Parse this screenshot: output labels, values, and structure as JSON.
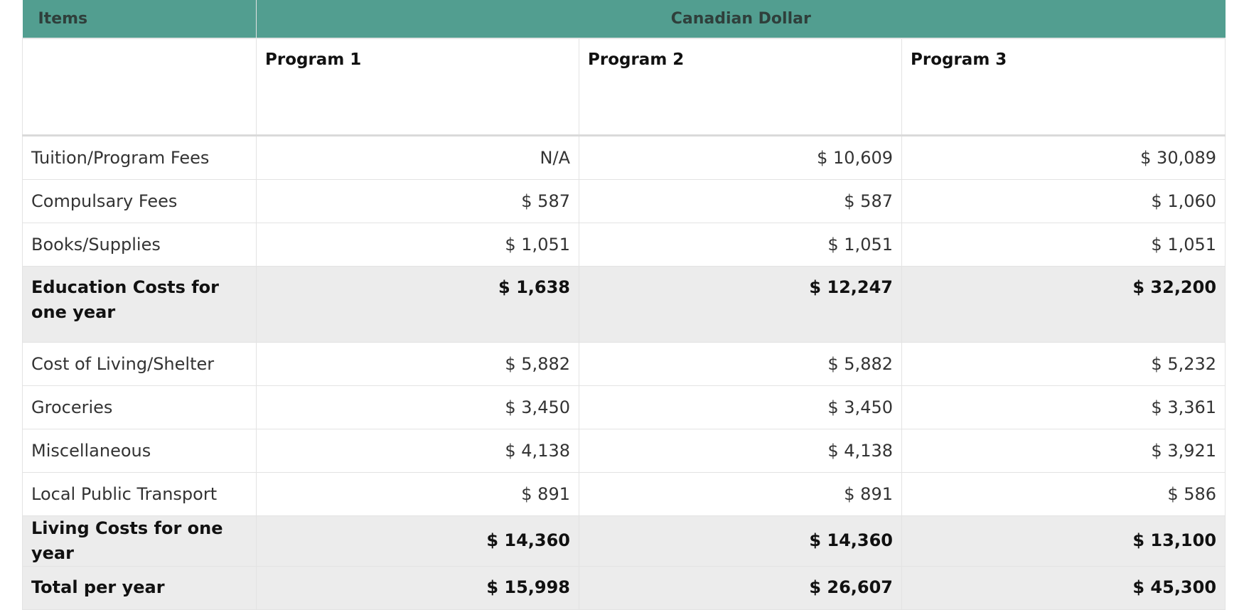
{
  "header": {
    "items_label": "Items",
    "currency_label": "Canadian Dollar"
  },
  "programs": [
    "Program 1",
    "Program 2",
    "Program 3"
  ],
  "rows": [
    {
      "label": "Tuition/Program Fees",
      "values": [
        "N/A",
        "$ 10,609",
        "$ 30,089"
      ],
      "subtotal": false
    },
    {
      "label": "Compulsary Fees",
      "values": [
        "$ 587",
        "$ 587",
        "$ 1,060"
      ],
      "subtotal": false
    },
    {
      "label": "Books/Supplies",
      "values": [
        "$ 1,051",
        "$ 1,051",
        "$ 1,051"
      ],
      "subtotal": false
    },
    {
      "label": "Education Costs for one year",
      "values": [
        "$ 1,638",
        "$ 12,247",
        "$ 32,200"
      ],
      "subtotal": true
    },
    {
      "label": "Cost of Living/Shelter",
      "values": [
        "$ 5,882",
        "$ 5,882",
        "$ 5,232"
      ],
      "subtotal": false
    },
    {
      "label": "Groceries",
      "values": [
        "$ 3,450",
        "$ 3,450",
        "$ 3,361"
      ],
      "subtotal": false
    },
    {
      "label": "Miscellaneous",
      "values": [
        "$ 4,138",
        "$ 4,138",
        "$ 3,921"
      ],
      "subtotal": false
    },
    {
      "label": "Local Public Transport",
      "values": [
        "$ 891",
        "$ 891",
        "$ 586"
      ],
      "subtotal": false
    },
    {
      "label": "Living Costs for one year",
      "values": [
        "$ 14,360",
        "$ 14,360",
        "$ 13,100"
      ],
      "subtotal": true
    },
    {
      "label": "Total per year",
      "values": [
        "$ 15,998",
        "$ 26,607",
        "$ 45,300"
      ],
      "subtotal": true
    }
  ]
}
